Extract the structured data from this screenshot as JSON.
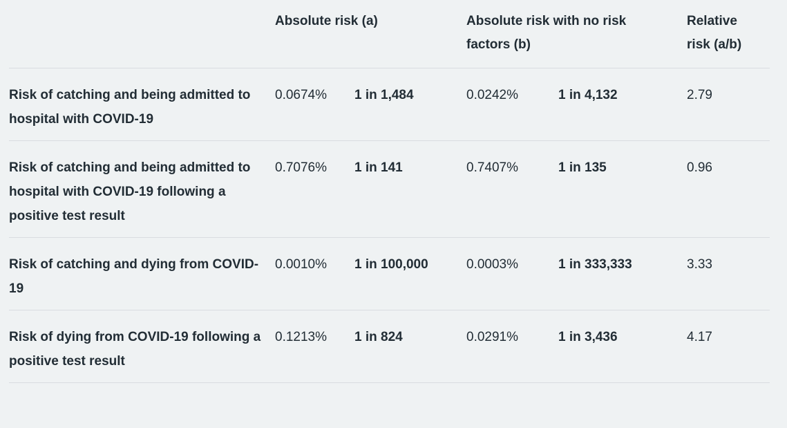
{
  "colors": {
    "background": "#eff2f3",
    "text": "#222d35",
    "divider": "#d9dce0"
  },
  "chart_data": {
    "type": "table",
    "title": "",
    "headers": {
      "row_label": "",
      "absolute_risk": "Absolute risk (a)",
      "absolute_risk_no_factors": "Absolute risk with no risk factors (b)",
      "relative_risk": "Relative risk (a/b)"
    },
    "rows": [
      {
        "label": "Risk of catching and being admitted to hospital with COVID-19",
        "absolute_risk_pct": "0.0674%",
        "absolute_risk_ratio": "1 in 1,484",
        "no_risk_factors_pct": "0.0242%",
        "no_risk_factors_ratio": "1 in 4,132",
        "relative_risk": "2.79"
      },
      {
        "label": "Risk of catching and being admitted to hospital with COVID-19 following a positive test result",
        "absolute_risk_pct": "0.7076%",
        "absolute_risk_ratio": "1 in 141",
        "no_risk_factors_pct": "0.7407%",
        "no_risk_factors_ratio": "1 in 135",
        "relative_risk": "0.96"
      },
      {
        "label": "Risk of catching and dying from COVID-19",
        "absolute_risk_pct": "0.0010%",
        "absolute_risk_ratio": "1 in 100,000",
        "no_risk_factors_pct": "0.0003%",
        "no_risk_factors_ratio": "1 in 333,333",
        "relative_risk": "3.33"
      },
      {
        "label": "Risk of dying from COVID-19 following a positive test result",
        "absolute_risk_pct": "0.1213%",
        "absolute_risk_ratio": "1 in 824",
        "no_risk_factors_pct": "0.0291%",
        "no_risk_factors_ratio": "1 in 3,436",
        "relative_risk": "4.17"
      }
    ]
  }
}
